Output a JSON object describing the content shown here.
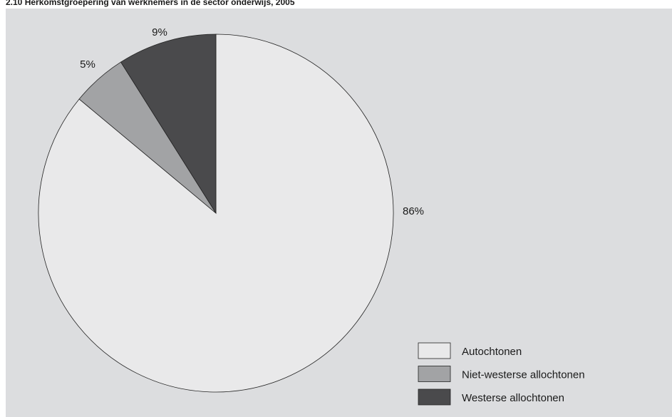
{
  "chart_data": {
    "type": "pie",
    "title": "2.10 Herkomstgroepering van werknemers in de sector onderwijs, 2005",
    "categories": [
      "Autochtonen",
      "Niet-westerse allochtonen",
      "Westerse allochtonen"
    ],
    "values": [
      86,
      5,
      9
    ],
    "value_labels": [
      "86%",
      "5%",
      "9%"
    ],
    "colors": [
      "#e9e9ea",
      "#a2a3a5",
      "#4a4a4c"
    ]
  }
}
